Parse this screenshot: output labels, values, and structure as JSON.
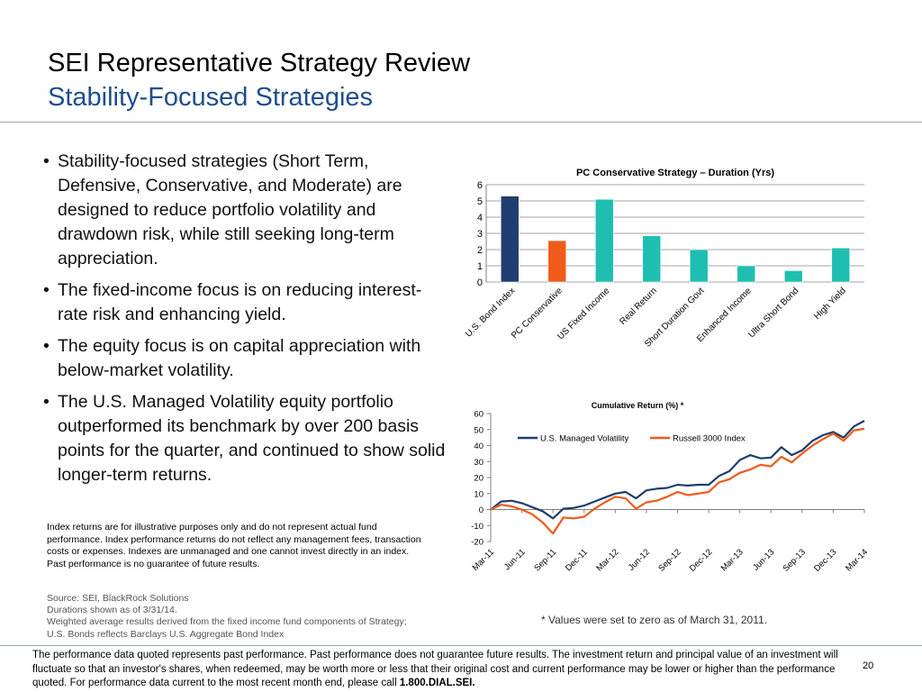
{
  "header": {
    "title": "SEI Representative Strategy Review",
    "subtitle": "Stability-Focused Strategies"
  },
  "bullets": [
    "Stability-focused strategies (Short Term, Defensive, Conservative, and Moderate) are designed to reduce portfolio volatility and drawdown risk, while still seeking long-term appreciation.",
    "The fixed-income focus is on reducing interest-rate risk and enhancing yield.",
    "The equity focus is on capital appreciation with below-market volatility.",
    "The U.S. Managed Volatility equity portfolio outperformed its benchmark by over 200 basis points for the quarter, and continued to show solid longer-term returns."
  ],
  "disclaimer": "Index returns are for illustrative purposes only and do not represent actual fund performance. Index performance returns do not reflect any management fees, transaction costs or expenses.  Indexes are unmanaged and one cannot invest directly in an index.  Past performance is no guarantee of future results.",
  "source": {
    "line1": "Source: SEI, BlackRock Solutions",
    "line2": "Durations shown as of 3/31/14.",
    "line3": "Weighted average results derived from the fixed income fund components of Strategy;",
    "line4": "U.S. Bonds reflects Barclays U.S. Aggregate Bond Index"
  },
  "footnote": "* Values were set to zero as of March 31, 2011.",
  "footer": {
    "text": "The performance data quoted represents past performance. Past performance does not guarantee future results. The investment return and principal value of an investment will fluctuate so that an investor's shares, when redeemed, may be worth more or less that their original cost and current performance may be lower or higher than the performance quoted. For performance data current to the most recent month end, please call ",
    "phone": "1.800.DIAL.SEI.",
    "page_number": "20"
  },
  "chart_data": [
    {
      "type": "bar",
      "title": "PC Conservative Strategy – Duration (Yrs)",
      "categories": [
        "U.S. Bond Index",
        "PC Conservative",
        "US Fixed Income",
        "Real Return",
        "Short Duration Govt",
        "Enhanced Income",
        "Ultra Short Bond",
        "High Yield"
      ],
      "values": [
        5.3,
        2.55,
        5.1,
        2.85,
        2.0,
        1.0,
        0.7,
        2.1
      ],
      "colors": [
        "#1f3d6e",
        "#f05a1a",
        "#1ebfb0",
        "#1ebfb0",
        "#1ebfb0",
        "#1ebfb0",
        "#1ebfb0",
        "#1ebfb0"
      ],
      "ylim": [
        0,
        6
      ],
      "yticks": [
        0,
        1,
        2,
        3,
        4,
        5,
        6
      ],
      "grid": true
    },
    {
      "type": "line",
      "title": "Cumulative Return (%)  *",
      "x": [
        "Mar-11",
        "Apr-11",
        "May-11",
        "Jun-11",
        "Jul-11",
        "Aug-11",
        "Sep-11",
        "Oct-11",
        "Nov-11",
        "Dec-11",
        "Jan-12",
        "Feb-12",
        "Mar-12",
        "Apr-12",
        "May-12",
        "Jun-12",
        "Jul-12",
        "Aug-12",
        "Sep-12",
        "Oct-12",
        "Nov-12",
        "Dec-12",
        "Jan-13",
        "Feb-13",
        "Mar-13",
        "Apr-13",
        "May-13",
        "Jun-13",
        "Jul-13",
        "Aug-13",
        "Sep-13",
        "Oct-13",
        "Nov-13",
        "Dec-13",
        "Jan-14",
        "Feb-14",
        "Mar-14"
      ],
      "xticks": [
        "Mar-11",
        "Jun-11",
        "Sep-11",
        "Dec-11",
        "Mar-12",
        "Jun-12",
        "Sep-12",
        "Dec-12",
        "Mar-13",
        "Jun-13",
        "Sep-13",
        "Dec-13",
        "Mar-14"
      ],
      "series": [
        {
          "name": "U.S. Managed Volatility",
          "color": "#1f3d6e",
          "values": [
            0,
            5,
            5.5,
            4,
            1.5,
            -1,
            -5.5,
            0.5,
            1,
            2.5,
            5,
            7.5,
            10,
            11,
            7,
            12,
            13,
            13.5,
            15.5,
            15,
            15.5,
            15.5,
            21,
            24,
            31,
            34,
            32,
            32.5,
            39,
            34,
            37,
            43,
            46.5,
            48.5,
            45,
            52,
            55.5
          ]
        },
        {
          "name": "Russell 3000 Index",
          "color": "#f05a1a",
          "values": [
            0,
            3,
            2,
            0,
            -3,
            -8,
            -15,
            -5,
            -5.5,
            -4.5,
            0.5,
            4.5,
            8,
            7,
            0.5,
            4.5,
            5.5,
            8,
            11,
            9,
            10,
            11,
            17,
            19,
            23,
            25,
            28,
            27,
            33,
            29.5,
            35,
            40,
            44,
            47.5,
            43,
            49.5,
            50.5
          ]
        }
      ],
      "ylim": [
        -20,
        60
      ],
      "yticks": [
        -20,
        -10,
        0,
        10,
        20,
        30,
        40,
        50,
        60
      ],
      "legend": "top"
    }
  ]
}
